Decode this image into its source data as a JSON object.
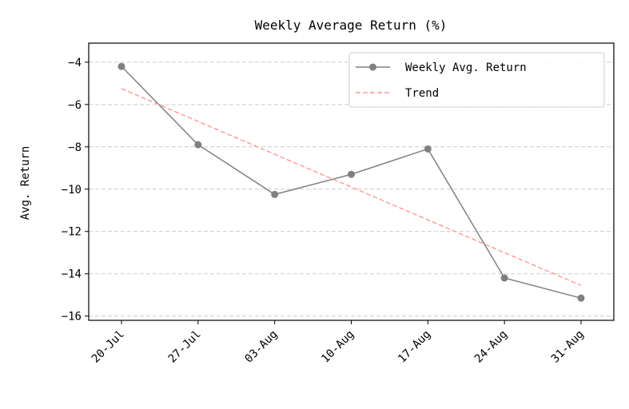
{
  "chart_data": {
    "type": "line",
    "title": "Weekly Average Return (%)",
    "xlabel": "",
    "ylabel": "Avg. Return",
    "categories": [
      "20-Jul",
      "27-Jul",
      "03-Aug",
      "10-Aug",
      "17-Aug",
      "24-Aug",
      "31-Aug"
    ],
    "series": [
      {
        "name": "Weekly Avg. Return",
        "values": [
          -4.2,
          -7.9,
          -10.25,
          -9.3,
          -8.1,
          -14.2,
          -15.15
        ],
        "color": "#808080",
        "style": "solid",
        "marker": "circle"
      },
      {
        "name": "Trend",
        "values": [
          -5.25,
          -6.8,
          -8.35,
          -9.9,
          -11.45,
          -13.0,
          -14.55
        ],
        "color": "#ff9999",
        "style": "dashed",
        "marker": "none"
      }
    ],
    "ylim": [
      -16.2,
      -3.1
    ],
    "yticks": [
      -4,
      -6,
      -8,
      -10,
      -12,
      -14,
      -16
    ],
    "grid": "y-dashed",
    "legend_position": "top-right",
    "tick_label_rotation": 45
  }
}
